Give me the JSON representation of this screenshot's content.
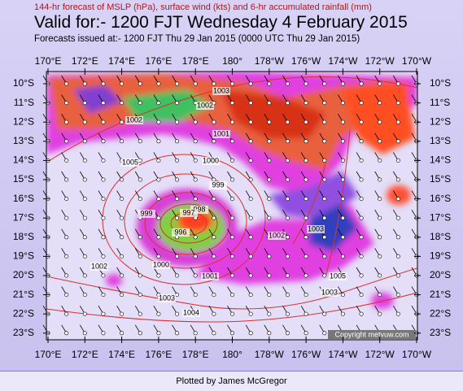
{
  "header": {
    "subtitle": "144-hr forecast of MSLP (hPa), surface wind (kts) and 6-hr accumulated rainfall (mm)",
    "title": "Valid for:- 1200 FJT Wednesday  4 February 2015",
    "issued": "Forecasts issued at:- 1200 FJT Thu 29 Jan 2015 (0000 UTC Thu 29 Jan 2015)"
  },
  "map": {
    "lon_labels": [
      "170°E",
      "172°E",
      "174°E",
      "176°E",
      "178°E",
      "180°",
      "178°W",
      "176°W",
      "174°W",
      "172°W",
      "170°W"
    ],
    "lat_labels": [
      "10°S",
      "11°S",
      "12°S",
      "13°S",
      "14°S",
      "15°S",
      "16°S",
      "17°S",
      "18°S",
      "19°S",
      "20°S",
      "21°S",
      "22°S",
      "23°S"
    ],
    "isobar_labels": [
      "1003",
      "1002",
      "1002",
      "1001",
      "1000",
      "1005",
      "999",
      "999",
      "998",
      "997",
      "996",
      "1002",
      "1003",
      "1003",
      "1000",
      "1001",
      "1002",
      "1003",
      "1004",
      "1005"
    ],
    "copyright": "Copyright metvuw.com"
  },
  "footer": {
    "credit": "Plotted by James McGregor"
  }
}
